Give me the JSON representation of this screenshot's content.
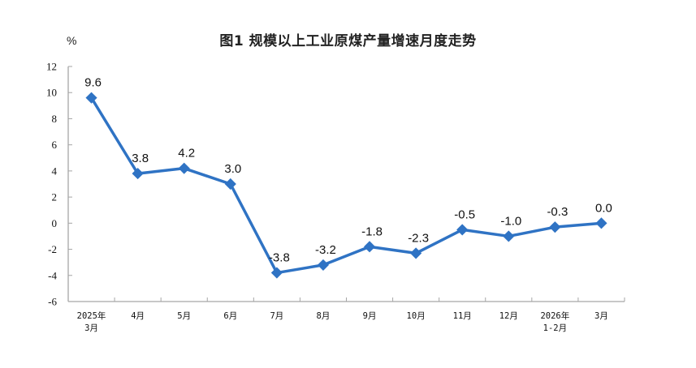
{
  "title": "图1  规模以上工业原煤产量增速月度走势",
  "unit": "%",
  "colors": {
    "line": "#2F73C4",
    "axis": "#A6A6A6"
  },
  "chart_data": {
    "type": "line",
    "title": "图1  规模以上工业原煤产量增速月度走势",
    "xlabel": "",
    "ylabel": "%",
    "ylim": [
      -6,
      12
    ],
    "yticks": [
      12,
      10,
      8,
      6,
      4,
      2,
      0,
      -2,
      -4,
      -6
    ],
    "grid": false,
    "legend": null,
    "categories": [
      "2025年\n3月",
      "4月",
      "5月",
      "6月",
      "7月",
      "8月",
      "9月",
      "10月",
      "11月",
      "12月",
      "2026年\n1-2月",
      "3月"
    ],
    "category_lines": [
      [
        "2025年",
        "3月"
      ],
      [
        "4月"
      ],
      [
        "5月"
      ],
      [
        "6月"
      ],
      [
        "7月"
      ],
      [
        "8月"
      ],
      [
        "9月"
      ],
      [
        "10月"
      ],
      [
        "11月"
      ],
      [
        "12月"
      ],
      [
        "2026年",
        "1-2月"
      ],
      [
        "3月"
      ]
    ],
    "series": [
      {
        "name": "规模以上工业原煤产量增速",
        "values": [
          9.6,
          3.8,
          4.2,
          3.0,
          -3.8,
          -3.2,
          -1.8,
          -2.3,
          -0.5,
          -1.0,
          -0.3,
          0.0
        ],
        "labels": [
          "9.6",
          "3.8",
          "4.2",
          "3.0",
          "-3.8",
          "-3.2",
          "-1.8",
          "-2.3",
          "-0.5",
          "-1.0",
          "-0.3",
          "0.0"
        ]
      }
    ]
  }
}
